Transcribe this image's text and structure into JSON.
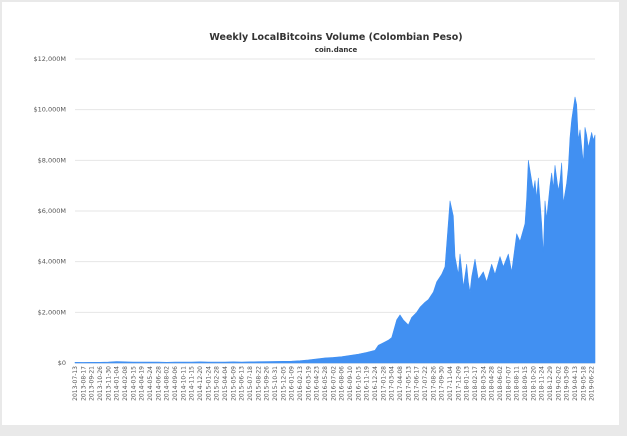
{
  "chart_data": {
    "type": "area",
    "title": "Weekly LocalBitcoins Volume (Colombian Peso)",
    "subtitle": "coin.dance",
    "xlabel": "",
    "ylabel": "",
    "ylim": [
      0,
      12000
    ],
    "y_unit": "millions COP",
    "y_ticks": [
      0,
      2000,
      4000,
      6000,
      8000,
      10000,
      12000
    ],
    "y_tick_labels": [
      "$0",
      "$2,000M",
      "$4,000M",
      "$6,000M",
      "$8,000M",
      "$10,000M",
      "$12,000M"
    ],
    "grid": true,
    "legend": "none",
    "color": "#4190f2",
    "x_tick_labels": [
      "2013-07-13",
      "2013-08-17",
      "2013-09-21",
      "2013-10-26",
      "2013-11-30",
      "2014-01-04",
      "2014-02-08",
      "2014-03-15",
      "2014-04-19",
      "2014-05-24",
      "2014-06-28",
      "2014-08-02",
      "2014-09-06",
      "2014-10-11",
      "2014-11-15",
      "2014-12-20",
      "2015-01-24",
      "2015-02-28",
      "2015-04-04",
      "2015-05-09",
      "2015-06-13",
      "2015-07-18",
      "2015-08-22",
      "2015-09-26",
      "2015-10-31",
      "2015-12-05",
      "2016-01-09",
      "2016-02-13",
      "2016-03-19",
      "2016-04-23",
      "2016-05-28",
      "2016-07-02",
      "2016-08-06",
      "2016-09-10",
      "2016-10-15",
      "2016-11-19",
      "2016-12-24",
      "2017-01-28",
      "2017-03-04",
      "2017-04-08",
      "2017-05-13",
      "2017-06-17",
      "2017-07-22",
      "2017-08-26",
      "2017-09-30",
      "2017-11-04",
      "2017-12-09",
      "2018-01-13",
      "2018-02-17",
      "2018-03-24",
      "2018-04-28",
      "2018-06-02",
      "2018-07-07",
      "2018-08-11",
      "2018-09-15",
      "2018-10-20",
      "2018-11-24",
      "2018-12-29",
      "2019-02-02",
      "2019-03-09",
      "2019-04-13",
      "2019-05-18",
      "2019-06-22"
    ],
    "x": [
      "2013-07-13",
      "2013-08-17",
      "2013-09-21",
      "2013-10-26",
      "2013-11-30",
      "2014-01-04",
      "2014-02-08",
      "2014-03-15",
      "2014-04-19",
      "2014-05-24",
      "2014-06-28",
      "2014-08-02",
      "2014-09-06",
      "2014-10-11",
      "2014-11-15",
      "2014-12-20",
      "2015-01-24",
      "2015-02-28",
      "2015-04-04",
      "2015-05-09",
      "2015-06-13",
      "2015-07-18",
      "2015-08-22",
      "2015-09-26",
      "2015-10-31",
      "2015-12-05",
      "2016-01-09",
      "2016-02-13",
      "2016-03-19",
      "2016-04-23",
      "2016-05-28",
      "2016-07-02",
      "2016-08-06",
      "2016-09-10",
      "2016-10-15",
      "2016-11-19",
      "2016-12-24",
      "2017-01-07",
      "2017-01-28",
      "2017-02-18",
      "2017-03-04",
      "2017-03-25",
      "2017-04-08",
      "2017-04-22",
      "2017-05-13",
      "2017-05-27",
      "2017-06-17",
      "2017-07-01",
      "2017-07-22",
      "2017-08-05",
      "2017-08-26",
      "2017-09-09",
      "2017-09-30",
      "2017-10-14",
      "2017-11-04",
      "2017-11-18",
      "2017-11-25",
      "2017-12-09",
      "2017-12-16",
      "2017-12-23",
      "2017-12-30",
      "2018-01-13",
      "2018-01-20",
      "2018-01-27",
      "2018-02-03",
      "2018-02-17",
      "2018-03-03",
      "2018-03-24",
      "2018-04-07",
      "2018-04-28",
      "2018-05-12",
      "2018-06-02",
      "2018-06-16",
      "2018-07-07",
      "2018-07-21",
      "2018-08-11",
      "2018-08-25",
      "2018-09-15",
      "2018-09-22",
      "2018-09-29",
      "2018-10-06",
      "2018-10-20",
      "2018-10-27",
      "2018-11-03",
      "2018-11-10",
      "2018-11-24",
      "2018-12-01",
      "2018-12-08",
      "2018-12-15",
      "2018-12-29",
      "2019-01-05",
      "2019-01-12",
      "2019-01-19",
      "2019-02-02",
      "2019-02-09",
      "2019-02-16",
      "2019-02-23",
      "2019-03-09",
      "2019-03-16",
      "2019-03-23",
      "2019-03-30",
      "2019-04-13",
      "2019-04-20",
      "2019-04-27",
      "2019-05-04",
      "2019-05-18",
      "2019-05-25",
      "2019-06-01",
      "2019-06-08",
      "2019-06-22",
      "2019-06-29",
      "2019-07-06"
    ],
    "values": [
      30,
      25,
      30,
      28,
      35,
      55,
      45,
      40,
      35,
      40,
      35,
      30,
      35,
      40,
      35,
      45,
      40,
      35,
      40,
      45,
      40,
      45,
      50,
      55,
      60,
      65,
      70,
      90,
      120,
      160,
      200,
      220,
      250,
      300,
      350,
      420,
      500,
      700,
      800,
      900,
      1000,
      1700,
      1900,
      1700,
      1500,
      1800,
      2000,
      2200,
      2400,
      2500,
      2800,
      3200,
      3500,
      3800,
      6400,
      5800,
      4200,
      3500,
      4300,
      3700,
      3000,
      3900,
      3200,
      2800,
      3400,
      4100,
      3300,
      3600,
      3200,
      3900,
      3500,
      4200,
      3800,
      4300,
      3600,
      5100,
      4800,
      5500,
      6500,
      8000,
      7600,
      6800,
      7200,
      6500,
      7300,
      5500,
      4300,
      6400,
      5700,
      7000,
      7500,
      6900,
      7800,
      6800,
      7200,
      7900,
      6300,
      7100,
      7700,
      8900,
      9600,
      10500,
      10200,
      8800,
      9200,
      7900,
      9300,
      9000,
      8500,
      9100,
      8800,
      9000
    ]
  }
}
